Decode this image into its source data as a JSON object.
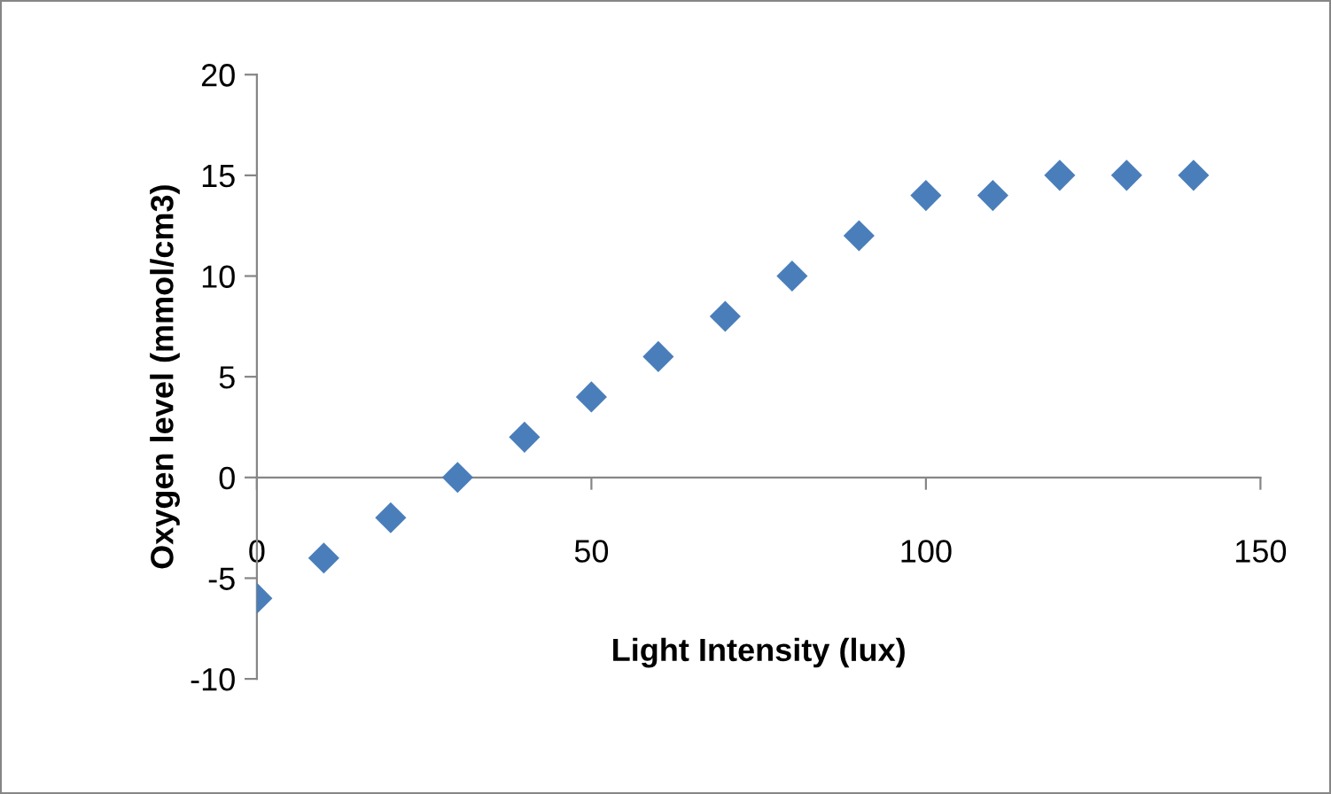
{
  "chart_data": {
    "type": "scatter",
    "xlabel": "Light Intensity (lux)",
    "ylabel": "Oxygen level (mmol/cm3)",
    "x": [
      0,
      10,
      20,
      30,
      40,
      50,
      60,
      70,
      80,
      90,
      100,
      110,
      120,
      130,
      140
    ],
    "series": [
      {
        "color": "#4a7ebb",
        "values": [
          -6,
          -4,
          -2,
          0,
          2,
          4,
          6,
          8,
          10,
          12,
          14,
          14,
          15,
          15,
          15
        ]
      }
    ],
    "xlim": [
      0,
      150
    ],
    "ylim": [
      -10,
      20
    ],
    "xticks": [
      0,
      50,
      100,
      150
    ],
    "yticks": [
      -10,
      -5,
      0,
      5,
      10,
      15,
      20
    ],
    "marker": "diamond",
    "grid": false
  }
}
